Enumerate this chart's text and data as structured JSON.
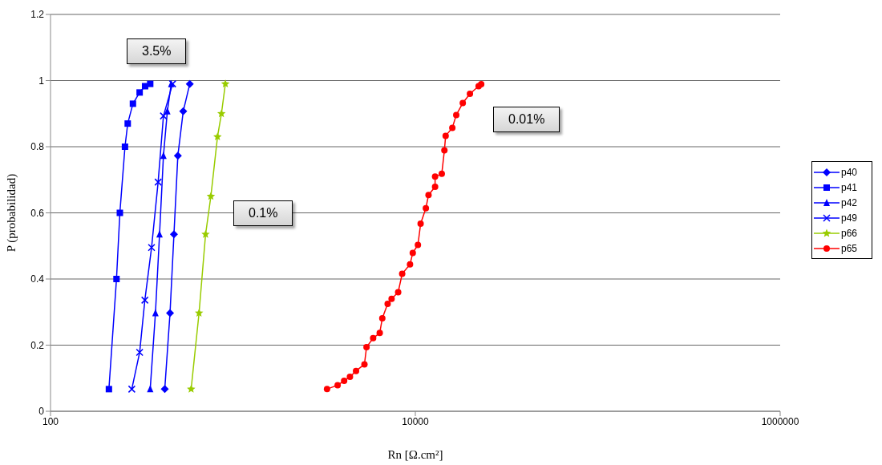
{
  "chart_data": {
    "type": "line",
    "xlabel": "Rn [Ω.cm²]",
    "ylabel": "P  (probabilidad)",
    "log": "x",
    "xlim": [
      100,
      1000000
    ],
    "xticks": [
      100,
      10000,
      1000000
    ],
    "ylim": [
      0,
      1.2
    ],
    "yticks": [
      0,
      0.2,
      0.4,
      0.6,
      0.8,
      1,
      1.2
    ],
    "grid": "y",
    "legend": "right",
    "line_style": "solid",
    "annotations": [
      "3.5%",
      "0.1%",
      "0.01%"
    ],
    "series": [
      {
        "name": "p40",
        "color": "#0000ff",
        "marker": "diamond",
        "x": [
          423,
          452,
          475,
          499,
          534,
          580
        ],
        "values": [
          0.067,
          0.297,
          0.535,
          0.773,
          0.907,
          0.99
        ]
      },
      {
        "name": "p41",
        "color": "#0000ff",
        "marker": "square",
        "x": [
          209,
          230,
          240,
          256,
          265,
          283,
          308,
          330,
          352
        ],
        "values": [
          0.067,
          0.4,
          0.6,
          0.8,
          0.87,
          0.93,
          0.964,
          0.983,
          0.99
        ]
      },
      {
        "name": "p42",
        "color": "#0000ff",
        "marker": "triangle",
        "x": [
          352,
          376,
          396,
          416,
          437,
          459
        ],
        "values": [
          0.067,
          0.297,
          0.535,
          0.773,
          0.907,
          0.99
        ]
      },
      {
        "name": "p49",
        "color": "#0000ff",
        "marker": "cross",
        "x": [
          279,
          308,
          329,
          358,
          389,
          416,
          467
        ],
        "values": [
          0.067,
          0.178,
          0.336,
          0.495,
          0.693,
          0.893,
          0.99
        ]
      },
      {
        "name": "p66",
        "color": "#99cc00",
        "marker": "star",
        "x": [
          590,
          652,
          708,
          757,
          823,
          865,
          909
        ],
        "values": [
          0.067,
          0.297,
          0.535,
          0.65,
          0.83,
          0.9,
          0.99
        ]
      },
      {
        "name": "p65",
        "color": "#ff0000",
        "marker": "circle",
        "x": [
          3280,
          3750,
          4070,
          4380,
          4730,
          5260,
          5400,
          5870,
          6380,
          6590,
          7050,
          7410,
          8050,
          8470,
          9350,
          9680,
          10330,
          10690,
          11420,
          11810,
          12830,
          12830,
          13960,
          14430,
          14660,
          15950,
          16760,
          18200,
          19920,
          22230,
          22970
        ],
        "values": [
          0.067,
          0.079,
          0.092,
          0.104,
          0.122,
          0.142,
          0.194,
          0.221,
          0.237,
          0.281,
          0.325,
          0.34,
          0.36,
          0.416,
          0.444,
          0.479,
          0.503,
          0.567,
          0.614,
          0.654,
          0.679,
          0.71,
          0.718,
          0.789,
          0.833,
          0.857,
          0.896,
          0.932,
          0.96,
          0.983,
          0.989
        ]
      }
    ]
  }
}
